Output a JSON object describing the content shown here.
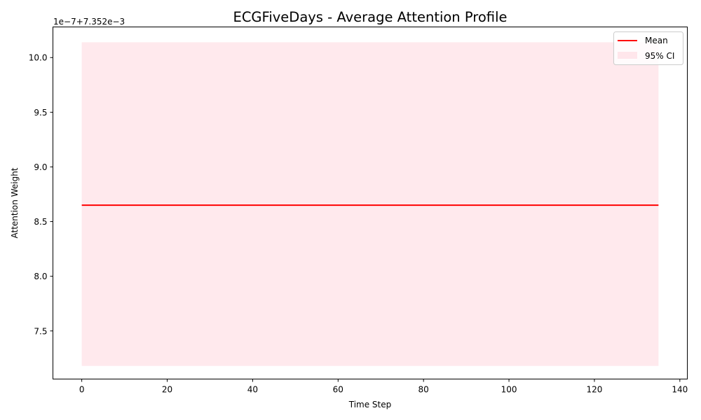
{
  "chart_data": {
    "type": "line",
    "title": "ECGFiveDays - Average Attention Profile",
    "xlabel": "Time Step",
    "ylabel": "Attention Weight",
    "offset_text": "1e−7+7.352e−3",
    "xlim": [
      -6.75,
      141.75
    ],
    "ylim": [
      7.06,
      10.28
    ],
    "x_ticks": [
      0,
      20,
      40,
      60,
      80,
      100,
      120,
      140
    ],
    "y_ticks": [
      7.5,
      8.0,
      8.5,
      9.0,
      9.5,
      10.0
    ],
    "y_tick_labels": [
      "7.5",
      "8.0",
      "8.5",
      "9.0",
      "9.5",
      "10.0"
    ],
    "grid": false,
    "legend_position": "upper right",
    "series": [
      {
        "name": "Mean",
        "kind": "line",
        "color": "#ff0000",
        "x": [
          0,
          135
        ],
        "y": [
          8.65,
          8.65
        ]
      },
      {
        "name": "95% CI",
        "kind": "band",
        "color": "#ffc0cb",
        "opacity": 0.35,
        "x": [
          0,
          135
        ],
        "lower": [
          7.18,
          7.18
        ],
        "upper": [
          10.14,
          10.14
        ]
      }
    ]
  }
}
